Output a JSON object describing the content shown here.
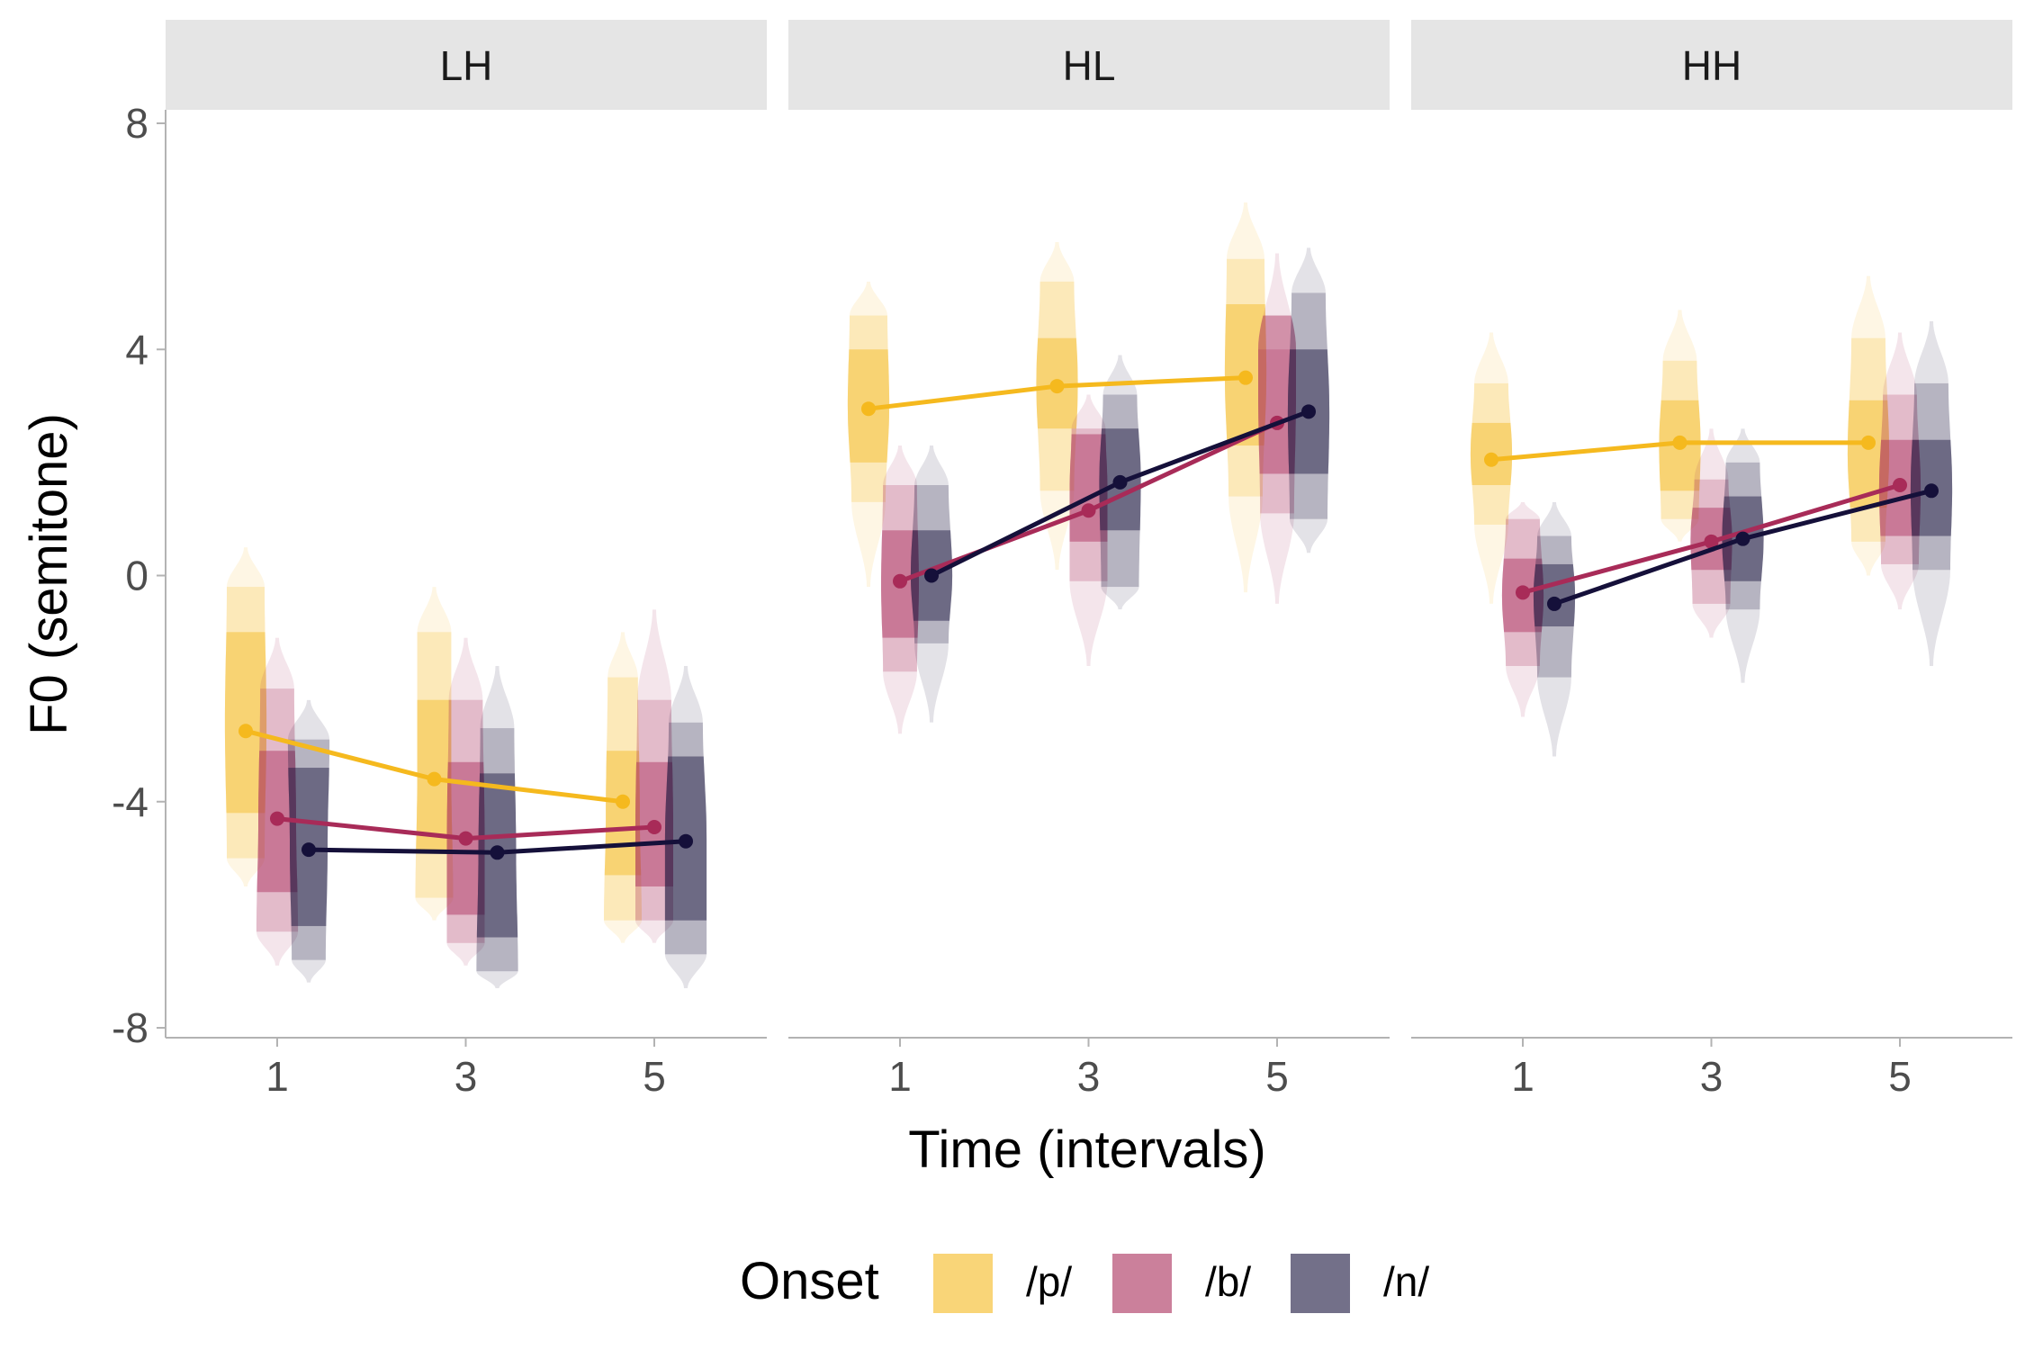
{
  "chart_data": {
    "type": "line",
    "xlabel": "Time (intervals)",
    "ylabel": "F0 (semitone)",
    "ylim": [
      -8,
      8
    ],
    "yticks": [
      -8,
      -4,
      0,
      4,
      8
    ],
    "xticks": [
      1,
      3,
      5
    ],
    "grid": false,
    "legend": {
      "title": "Onset",
      "placement": "bottom",
      "entries": [
        {
          "label": "/p/",
          "color": "#F5B91E"
        },
        {
          "label": "/b/",
          "color": "#A82B58"
        },
        {
          "label": "/n/",
          "color": "#15103A"
        }
      ]
    },
    "panels": [
      {
        "label": "LH",
        "series": [
          {
            "name": "/p/",
            "x": [
              1,
              3,
              5
            ],
            "y": [
              -2.75,
              -3.6,
              -4.0
            ],
            "dist": [
              {
                "min": -5.5,
                "max": 0.5,
                "q": [
                  -5.0,
                  -4.2,
                  -1.0,
                  -0.2
                ],
                "w": [
                  0.4,
                  0.5,
                  0.55,
                  0.5,
                  0.35
                ]
              },
              {
                "min": -6.1,
                "max": -0.2,
                "q": [
                  -5.7,
                  -4.9,
                  -2.2,
                  -1.0
                ],
                "w": [
                  0.4,
                  0.5,
                  0.45,
                  0.45,
                  0.3
                ]
              },
              {
                "min": -6.5,
                "max": -1.0,
                "q": [
                  -6.1,
                  -5.3,
                  -3.1,
                  -1.8
                ],
                "w": [
                  0.35,
                  0.5,
                  0.45,
                  0.4,
                  0.3
                ]
              }
            ]
          },
          {
            "name": "/b/",
            "x": [
              1,
              3,
              5
            ],
            "y": [
              -4.3,
              -4.65,
              -4.45
            ],
            "dist": [
              {
                "min": -6.9,
                "max": -1.1,
                "q": [
                  -6.3,
                  -5.6,
                  -3.1,
                  -2.0
                ],
                "w": [
                  0.4,
                  0.55,
                  0.5,
                  0.45,
                  0.3
                ]
              },
              {
                "min": -6.9,
                "max": -1.1,
                "q": [
                  -6.5,
                  -6.0,
                  -3.3,
                  -2.2
                ],
                "w": [
                  0.35,
                  0.5,
                  0.5,
                  0.45,
                  0.3
                ]
              },
              {
                "min": -6.5,
                "max": -0.6,
                "q": [
                  -6.1,
                  -5.5,
                  -3.3,
                  -2.2
                ],
                "w": [
                  0.35,
                  0.5,
                  0.5,
                  0.45,
                  0.3
                ]
              }
            ]
          },
          {
            "name": "/n/",
            "x": [
              1,
              3,
              5
            ],
            "y": [
              -4.85,
              -4.9,
              -4.7
            ],
            "dist": [
              {
                "min": -7.2,
                "max": -2.2,
                "q": [
                  -6.8,
                  -6.2,
                  -3.4,
                  -2.9
                ],
                "w": [
                  0.35,
                  0.45,
                  0.5,
                  0.55,
                  0.35
                ]
              },
              {
                "min": -7.3,
                "max": -1.6,
                "q": [
                  -7.0,
                  -6.4,
                  -3.5,
                  -2.7
                ],
                "w": [
                  0.35,
                  0.55,
                  0.5,
                  0.45,
                  0.3
                ]
              },
              {
                "min": -7.3,
                "max": -1.6,
                "q": [
                  -6.7,
                  -6.1,
                  -3.2,
                  -2.6
                ],
                "w": [
                  0.4,
                  0.55,
                  0.55,
                  0.45,
                  0.3
                ]
              }
            ]
          }
        ]
      },
      {
        "label": "HL",
        "series": [
          {
            "name": "/p/",
            "x": [
              1,
              3,
              5
            ],
            "y": [
              2.95,
              3.35,
              3.5
            ],
            "dist": [
              {
                "min": -0.2,
                "max": 5.2,
                "q": [
                  1.3,
                  2.0,
                  4.0,
                  4.6
                ],
                "w": [
                  0.3,
                  0.45,
                  0.55,
                  0.5,
                  0.35
                ]
              },
              {
                "min": 0.1,
                "max": 5.9,
                "q": [
                  1.5,
                  2.6,
                  4.2,
                  5.2
                ],
                "w": [
                  0.3,
                  0.45,
                  0.55,
                  0.45,
                  0.25
                ]
              },
              {
                "min": -0.3,
                "max": 6.6,
                "q": [
                  1.4,
                  2.3,
                  4.8,
                  5.6
                ],
                "w": [
                  0.3,
                  0.45,
                  0.55,
                  0.5,
                  0.35
                ]
              }
            ]
          },
          {
            "name": "/b/",
            "x": [
              1,
              3,
              5
            ],
            "y": [
              -0.1,
              1.15,
              2.7
            ],
            "dist": [
              {
                "min": -2.8,
                "max": 2.3,
                "q": [
                  -1.7,
                  -1.1,
                  0.8,
                  1.6
                ],
                "w": [
                  0.3,
                  0.45,
                  0.5,
                  0.45,
                  0.3
                ]
              },
              {
                "min": -1.6,
                "max": 3.2,
                "q": [
                  -0.1,
                  0.6,
                  2.5,
                  2.6
                ],
                "w": [
                  0.35,
                  0.5,
                  0.5,
                  0.45,
                  0.3
                ]
              },
              {
                "min": -0.5,
                "max": 5.7,
                "q": [
                  1.1,
                  1.8,
                  4.6,
                  4.0
                ],
                "w": [
                  0.3,
                  0.45,
                  0.5,
                  0.5,
                  0.3
                ]
              }
            ]
          },
          {
            "name": "/n/",
            "x": [
              1,
              3,
              5
            ],
            "y": [
              0.0,
              1.65,
              2.9
            ],
            "dist": [
              {
                "min": -2.6,
                "max": 2.3,
                "q": [
                  -1.2,
                  -0.8,
                  0.8,
                  1.6
                ],
                "w": [
                  0.3,
                  0.45,
                  0.55,
                  0.45,
                  0.3
                ]
              },
              {
                "min": -0.6,
                "max": 3.9,
                "q": [
                  -0.2,
                  0.8,
                  2.6,
                  3.2
                ],
                "w": [
                  0.35,
                  0.5,
                  0.55,
                  0.45,
                  0.3
                ]
              },
              {
                "min": 0.4,
                "max": 5.8,
                "q": [
                  1.0,
                  1.8,
                  4.0,
                  5.0
                ],
                "w": [
                  0.35,
                  0.5,
                  0.55,
                  0.45,
                  0.3
                ]
              }
            ]
          }
        ]
      },
      {
        "label": "HH",
        "series": [
          {
            "name": "/p/",
            "x": [
              1,
              3,
              5
            ],
            "y": [
              2.05,
              2.35,
              2.35
            ],
            "dist": [
              {
                "min": -0.5,
                "max": 4.3,
                "q": [
                  0.9,
                  1.6,
                  2.7,
                  3.4
                ],
                "w": [
                  0.3,
                  0.45,
                  0.55,
                  0.45,
                  0.3
                ]
              },
              {
                "min": 0.6,
                "max": 4.7,
                "q": [
                  1.0,
                  1.5,
                  3.1,
                  3.8
                ],
                "w": [
                  0.35,
                  0.5,
                  0.55,
                  0.45,
                  0.3
                ]
              },
              {
                "min": 0.0,
                "max": 5.3,
                "q": [
                  0.6,
                  1.2,
                  3.1,
                  4.2
                ],
                "w": [
                  0.35,
                  0.45,
                  0.55,
                  0.45,
                  0.3
                ]
              }
            ]
          },
          {
            "name": "/b/",
            "x": [
              1,
              3,
              5
            ],
            "y": [
              -0.3,
              0.6,
              1.6
            ],
            "dist": [
              {
                "min": -2.5,
                "max": 1.3,
                "q": [
                  -1.6,
                  -1.0,
                  0.3,
                  1.0
                ],
                "w": [
                  0.3,
                  0.45,
                  0.55,
                  0.45,
                  0.3
                ]
              },
              {
                "min": -1.1,
                "max": 2.6,
                "q": [
                  -0.5,
                  0.1,
                  1.2,
                  1.7
                ],
                "w": [
                  0.35,
                  0.5,
                  0.55,
                  0.45,
                  0.3
                ]
              },
              {
                "min": -0.6,
                "max": 4.3,
                "q": [
                  0.2,
                  0.7,
                  2.4,
                  3.2
                ],
                "w": [
                  0.35,
                  0.5,
                  0.55,
                  0.45,
                  0.3
                ]
              }
            ]
          },
          {
            "name": "/n/",
            "x": [
              1,
              3,
              5
            ],
            "y": [
              -0.5,
              0.65,
              1.5
            ],
            "dist": [
              {
                "min": -3.2,
                "max": 1.3,
                "q": [
                  -1.8,
                  -0.9,
                  0.2,
                  0.7
                ],
                "w": [
                  0.3,
                  0.45,
                  0.55,
                  0.45,
                  0.3
                ]
              },
              {
                "min": -1.9,
                "max": 2.6,
                "q": [
                  -0.6,
                  -0.1,
                  1.4,
                  2.0
                ],
                "w": [
                  0.3,
                  0.45,
                  0.55,
                  0.45,
                  0.3
                ]
              },
              {
                "min": -1.6,
                "max": 4.5,
                "q": [
                  0.1,
                  0.7,
                  2.4,
                  3.4
                ],
                "w": [
                  0.35,
                  0.5,
                  0.55,
                  0.45,
                  0.3
                ]
              }
            ]
          }
        ]
      }
    ]
  }
}
